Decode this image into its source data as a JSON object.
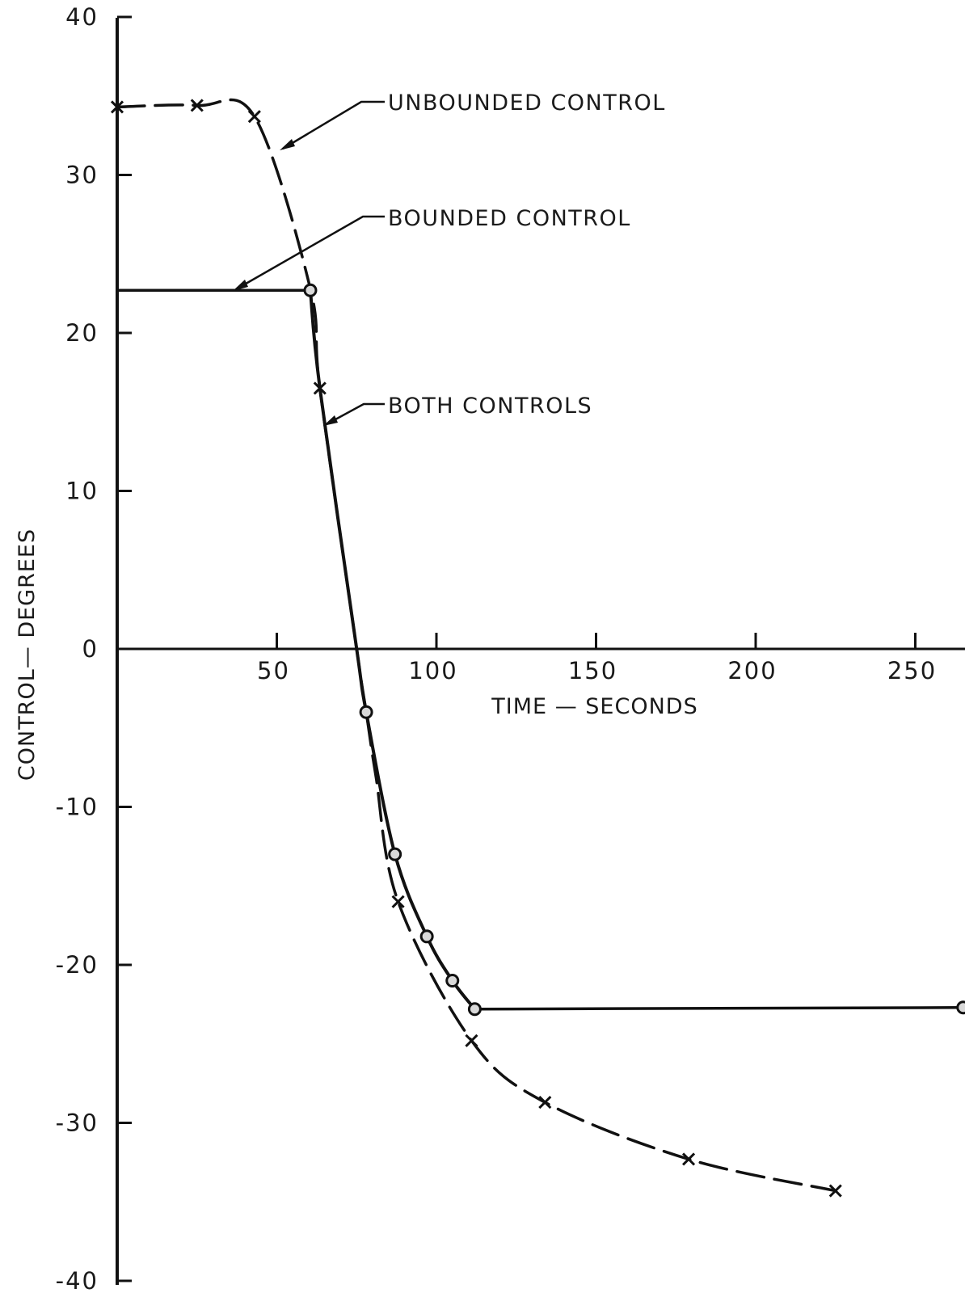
{
  "chart_data": {
    "type": "line",
    "title": "",
    "xlabel": "TIME — SECONDS",
    "ylabel": "CONTROL— DEGREES",
    "xlim": [
      0,
      265
    ],
    "ylim": [
      -40,
      40
    ],
    "x_ticks": [
      {
        "value": 50,
        "label": "50"
      },
      {
        "value": 100,
        "label": "100"
      },
      {
        "value": 150,
        "label": "150"
      },
      {
        "value": 200,
        "label": "200"
      },
      {
        "value": 250,
        "label": "250"
      }
    ],
    "y_ticks": [
      {
        "value": 40,
        "label": "40"
      },
      {
        "value": 30,
        "label": "30"
      },
      {
        "value": 20,
        "label": "20"
      },
      {
        "value": 10,
        "label": "10"
      },
      {
        "value": 0,
        "label": "0"
      },
      {
        "value": -10,
        "label": "-10"
      },
      {
        "value": -20,
        "label": "-20"
      },
      {
        "value": -30,
        "label": "-30"
      },
      {
        "value": -40,
        "label": "-40"
      }
    ],
    "grid": false,
    "series": [
      {
        "name": "UNBOUNDED CONTROL",
        "style": "dashed",
        "marker": "x",
        "points": [
          [
            0,
            34.3
          ],
          [
            25,
            34.4
          ],
          [
            43,
            33.7
          ],
          [
            60.5,
            22.8
          ],
          [
            63.5,
            16.5
          ],
          [
            75,
            0
          ],
          [
            78,
            -4
          ],
          [
            81,
            -8
          ],
          [
            88,
            -16
          ],
          [
            111,
            -24.8
          ],
          [
            134,
            -28.7
          ],
          [
            179,
            -32.3
          ],
          [
            225,
            -34.3
          ]
        ],
        "marker_points": [
          [
            0,
            34.3
          ],
          [
            25,
            34.4
          ],
          [
            43,
            33.7
          ],
          [
            63.5,
            16.5
          ],
          [
            88,
            -16
          ],
          [
            111,
            -24.8
          ],
          [
            134,
            -28.7
          ],
          [
            179,
            -32.3
          ],
          [
            225,
            -34.3
          ]
        ]
      },
      {
        "name": "BOUNDED CONTROL",
        "style": "solid",
        "marker": "circle",
        "points": [
          [
            0,
            22.7
          ],
          [
            60.5,
            22.7
          ],
          [
            63.5,
            16.5
          ],
          [
            75,
            0
          ],
          [
            78,
            -4
          ],
          [
            87,
            -13
          ],
          [
            97,
            -18.2
          ],
          [
            105,
            -21
          ],
          [
            112,
            -22.8
          ],
          [
            265,
            -22.7
          ]
        ],
        "marker_points": [
          [
            60.5,
            22.7
          ],
          [
            78,
            -4
          ],
          [
            87,
            -13
          ],
          [
            97,
            -18.2
          ],
          [
            105,
            -21
          ],
          [
            112,
            -22.8
          ],
          [
            265,
            -22.7
          ]
        ]
      }
    ],
    "annotations": [
      {
        "text": "UNBOUNDED CONTROL",
        "points_to": [
          52,
          31.8
        ]
      },
      {
        "text": "BOUNDED CONTROL",
        "points_to": [
          37,
          22.9
        ]
      },
      {
        "text": "BOTH CONTROLS",
        "points_to": [
          66,
          14.3
        ]
      }
    ]
  }
}
